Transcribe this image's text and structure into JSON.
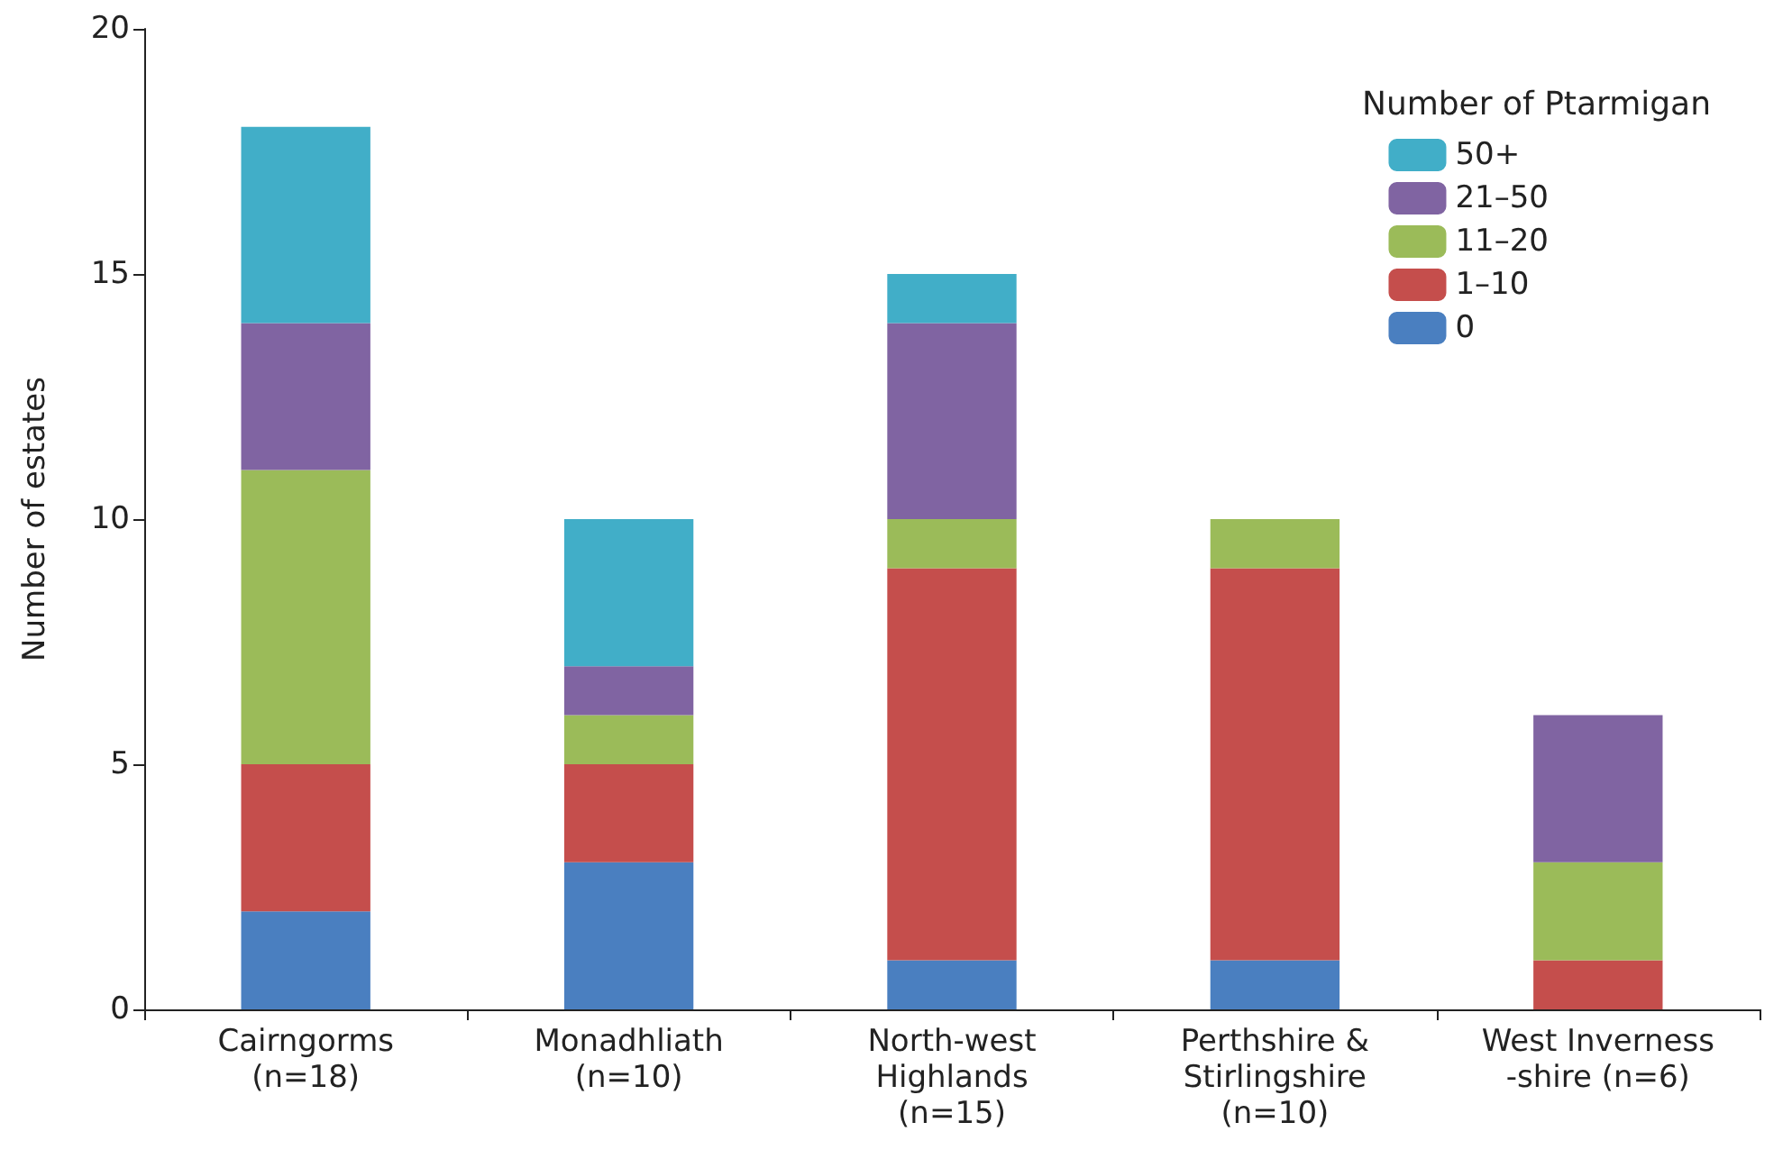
{
  "chart_data": {
    "type": "bar",
    "stacked": true,
    "ylabel": "Number of estates",
    "legend_title": "Number of Ptarmigan",
    "legend": "top right",
    "grid": false,
    "categories": [
      "Cairngorms\n(n=18)",
      "Monadhliath\n(n=10)",
      "North-west\nHighlands\n(n=15)",
      "Perthshire &\nStirlingshire\n(n=10)",
      "West Inverness\n-shire (n=6)"
    ],
    "ylim": [
      0,
      20
    ],
    "yticks": [
      0,
      5,
      10,
      15,
      20
    ],
    "series": [
      {
        "name": "0",
        "color": "#4a7fc0",
        "values": [
          2,
          3,
          1,
          1,
          0
        ]
      },
      {
        "name": "1–10",
        "color": "#c54e4c",
        "values": [
          3,
          2,
          8,
          8,
          1
        ]
      },
      {
        "name": "11–20",
        "color": "#9bbb59",
        "values": [
          6,
          1,
          1,
          1,
          2
        ]
      },
      {
        "name": "21–50",
        "color": "#8064a2",
        "values": [
          3,
          1,
          4,
          0,
          3
        ]
      },
      {
        "name": "50+",
        "color": "#41aec8",
        "values": [
          4,
          3,
          1,
          0,
          0
        ]
      }
    ]
  }
}
